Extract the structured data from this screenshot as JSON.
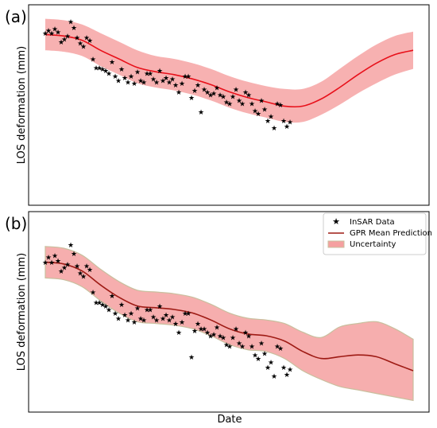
{
  "figure": {
    "xlabel": "Date"
  },
  "chart_data": [
    {
      "type": "line",
      "panel_label": "(a)",
      "xlabel": "",
      "ylabel": "LOS deformation (mm)",
      "xlim": [
        0,
        100
      ],
      "ylim": [
        0,
        100
      ],
      "grid": false,
      "legend": null,
      "colors": {
        "mean": "#e8101a",
        "band": "#f6a3a3",
        "points": "#000000"
      },
      "x": [
        0,
        5,
        10,
        15,
        20,
        25,
        30,
        35,
        40,
        45,
        50,
        55,
        60,
        65,
        70,
        75,
        80,
        85,
        90,
        95,
        100
      ],
      "series": [
        {
          "mean": [
            87,
            86,
            83,
            76,
            70,
            64,
            61,
            59,
            56,
            52,
            47,
            43,
            40,
            37,
            37,
            42,
            50,
            59,
            67,
            73,
            76
          ],
          "upper": [
            98,
            97,
            94,
            88,
            82,
            76,
            72,
            70,
            67,
            63,
            58,
            54,
            51,
            49,
            49,
            54,
            63,
            72,
            80,
            86,
            89
          ],
          "lower": [
            76,
            75,
            72,
            65,
            59,
            53,
            50,
            48,
            45,
            41,
            36,
            32,
            29,
            26,
            26,
            31,
            38,
            46,
            53,
            59,
            63
          ]
        }
      ],
      "points": [
        [
          0,
          88
        ],
        [
          1,
          90
        ],
        [
          2,
          88
        ],
        [
          3,
          91
        ],
        [
          4,
          89
        ],
        [
          5,
          82
        ],
        [
          6,
          84
        ],
        [
          7,
          86
        ],
        [
          8,
          96
        ],
        [
          9,
          92
        ],
        [
          10,
          85
        ],
        [
          11,
          81
        ],
        [
          12,
          79
        ],
        [
          13,
          85
        ],
        [
          14,
          83
        ],
        [
          15,
          70
        ],
        [
          16,
          64
        ],
        [
          17,
          64
        ],
        [
          18,
          63
        ],
        [
          19,
          62
        ],
        [
          20,
          60
        ],
        [
          21,
          68
        ],
        [
          22,
          58
        ],
        [
          23,
          55
        ],
        [
          24,
          63
        ],
        [
          25,
          57
        ],
        [
          26,
          54
        ],
        [
          27,
          58
        ],
        [
          28,
          53
        ],
        [
          29,
          61
        ],
        [
          30,
          55
        ],
        [
          31,
          54
        ],
        [
          32,
          60
        ],
        [
          33,
          60
        ],
        [
          34,
          56
        ],
        [
          35,
          54
        ],
        [
          36,
          62
        ],
        [
          37,
          55
        ],
        [
          38,
          57
        ],
        [
          39,
          54
        ],
        [
          40,
          56
        ],
        [
          41,
          52
        ],
        [
          42,
          47
        ],
        [
          43,
          53
        ],
        [
          44,
          58
        ],
        [
          45,
          58
        ],
        [
          46,
          43
        ],
        [
          47,
          48
        ],
        [
          48,
          52
        ],
        [
          49,
          33
        ],
        [
          50,
          49
        ],
        [
          51,
          47
        ],
        [
          52,
          45
        ],
        [
          53,
          46
        ],
        [
          54,
          50
        ],
        [
          55,
          45
        ],
        [
          56,
          44
        ],
        [
          57,
          40
        ],
        [
          58,
          39
        ],
        [
          59,
          44
        ],
        [
          60,
          49
        ],
        [
          61,
          41
        ],
        [
          62,
          39
        ],
        [
          63,
          47
        ],
        [
          64,
          45
        ],
        [
          65,
          39
        ],
        [
          66,
          34
        ],
        [
          67,
          32
        ],
        [
          68,
          41
        ],
        [
          69,
          35
        ],
        [
          70,
          27
        ],
        [
          71,
          30
        ],
        [
          72,
          22
        ],
        [
          73,
          39
        ],
        [
          74,
          38
        ],
        [
          75,
          27
        ],
        [
          76,
          23
        ],
        [
          77,
          26
        ]
      ]
    },
    {
      "type": "line",
      "panel_label": "(b)",
      "xlabel": "Date",
      "ylabel": "LOS deformation (mm)",
      "xlim": [
        0,
        100
      ],
      "ylim": [
        0,
        100
      ],
      "grid": false,
      "legend": {
        "position": "top-right",
        "entries": [
          {
            "label": "InSAR Data",
            "marker": "star"
          },
          {
            "label": "GPR Mean Prediction",
            "marker": "line"
          },
          {
            "label": "Uncertainty",
            "marker": "patch"
          }
        ]
      },
      "colors": {
        "mean": "#9e1a14",
        "band": "#f5a0a0",
        "band_edge": "#c9bf9e",
        "points": "#000000"
      },
      "x": [
        0,
        5,
        10,
        15,
        20,
        25,
        30,
        35,
        40,
        45,
        50,
        55,
        60,
        65,
        70,
        75,
        80,
        85,
        90,
        95,
        100
      ],
      "series": [
        {
          "mean": [
            82,
            81,
            77,
            69,
            62,
            57,
            56,
            55,
            53,
            49,
            44,
            41,
            40,
            37,
            31,
            27,
            28,
            29,
            28,
            24,
            20
          ],
          "upper": [
            91,
            90,
            86,
            78,
            71,
            66,
            65,
            64,
            62,
            58,
            53,
            50,
            49,
            47,
            42,
            39,
            45,
            47,
            48,
            44,
            38
          ],
          "lower": [
            73,
            72,
            68,
            60,
            53,
            48,
            47,
            46,
            44,
            40,
            35,
            32,
            31,
            27,
            20,
            15,
            11,
            9,
            7,
            5,
            3
          ]
        }
      ],
      "points": [
        [
          0,
          82
        ],
        [
          1,
          85
        ],
        [
          2,
          82
        ],
        [
          3,
          86
        ],
        [
          4,
          83
        ],
        [
          5,
          77
        ],
        [
          6,
          79
        ],
        [
          7,
          81
        ],
        [
          8,
          92
        ],
        [
          9,
          87
        ],
        [
          10,
          80
        ],
        [
          11,
          76
        ],
        [
          12,
          74
        ],
        [
          13,
          80
        ],
        [
          14,
          78
        ],
        [
          15,
          65
        ],
        [
          16,
          59
        ],
        [
          17,
          59
        ],
        [
          18,
          58
        ],
        [
          19,
          57
        ],
        [
          20,
          55
        ],
        [
          21,
          63
        ],
        [
          22,
          53
        ],
        [
          23,
          50
        ],
        [
          24,
          58
        ],
        [
          25,
          52
        ],
        [
          26,
          49
        ],
        [
          27,
          53
        ],
        [
          28,
          48
        ],
        [
          29,
          56
        ],
        [
          30,
          50
        ],
        [
          31,
          49
        ],
        [
          32,
          55
        ],
        [
          33,
          55
        ],
        [
          34,
          51
        ],
        [
          35,
          49
        ],
        [
          36,
          57
        ],
        [
          37,
          50
        ],
        [
          38,
          52
        ],
        [
          39,
          49
        ],
        [
          40,
          51
        ],
        [
          41,
          47
        ],
        [
          42,
          42
        ],
        [
          43,
          48
        ],
        [
          44,
          53
        ],
        [
          45,
          53
        ],
        [
          46,
          28
        ],
        [
          47,
          43
        ],
        [
          48,
          47
        ],
        [
          49,
          44
        ],
        [
          50,
          44
        ],
        [
          51,
          42
        ],
        [
          52,
          40
        ],
        [
          53,
          41
        ],
        [
          54,
          45
        ],
        [
          55,
          40
        ],
        [
          56,
          39
        ],
        [
          57,
          35
        ],
        [
          58,
          34
        ],
        [
          59,
          39
        ],
        [
          60,
          44
        ],
        [
          61,
          36
        ],
        [
          62,
          34
        ],
        [
          63,
          42
        ],
        [
          64,
          40
        ],
        [
          65,
          34
        ],
        [
          66,
          29
        ],
        [
          67,
          27
        ],
        [
          68,
          36
        ],
        [
          69,
          30
        ],
        [
          70,
          22
        ],
        [
          71,
          25
        ],
        [
          72,
          17
        ],
        [
          73,
          34
        ],
        [
          74,
          33
        ],
        [
          75,
          22
        ],
        [
          76,
          18
        ],
        [
          77,
          21
        ]
      ]
    }
  ]
}
